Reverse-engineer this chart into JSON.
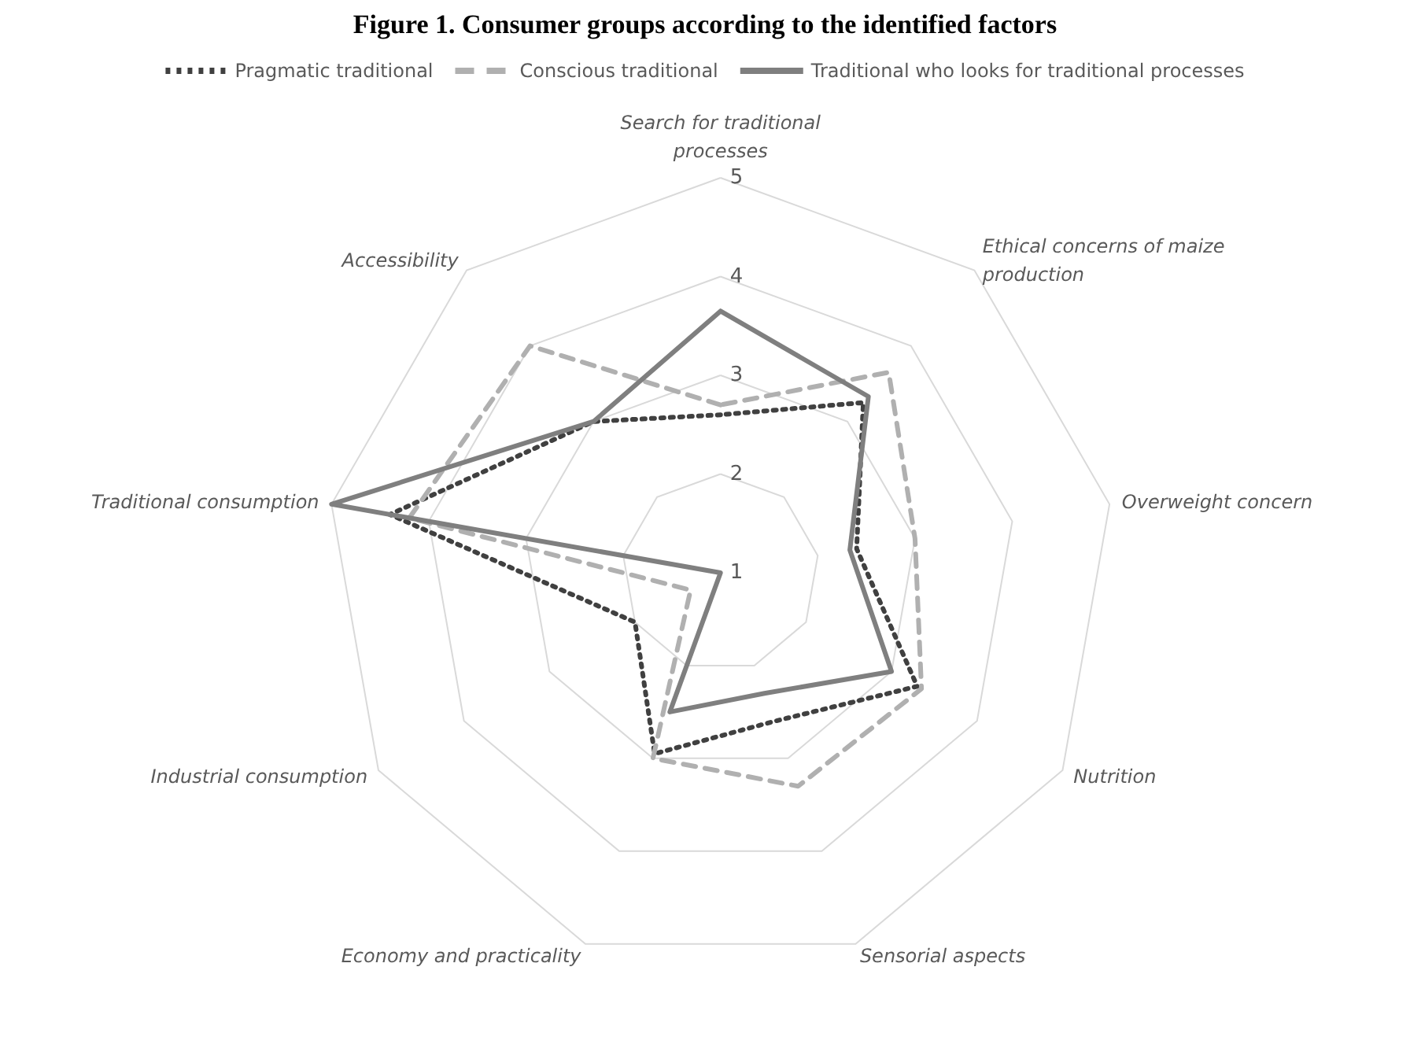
{
  "chart_data": {
    "type": "radar",
    "title": "Figure 1. Consumer groups according to the identified factors",
    "categories": [
      "Search for traditional\nprocesses",
      "Ethical concerns of maize\nproduction",
      "Overweight concern",
      "Nutrition",
      "Sensorial aspects",
      "Economy and practicality",
      "Industrial consumption",
      "Traditional consumption",
      "Accessibility"
    ],
    "series": [
      {
        "name": "Pragmatic traditional",
        "color": "#404040",
        "line_style": "dotted",
        "values": [
          2.6,
          3.25,
          2.4,
          3.3,
          2.6,
          2.95,
          2.0,
          4.4,
          3.0
        ]
      },
      {
        "name": "Conscious traditional",
        "color": "#b0b0b0",
        "line_style": "dashed",
        "values": [
          2.7,
          3.65,
          3.0,
          3.35,
          3.3,
          3.0,
          1.35,
          4.2,
          4.0
        ]
      },
      {
        "name": "Traditional who looks for traditional processes",
        "color": "#7f7f7f",
        "line_style": "solid",
        "values": [
          3.65,
          3.33,
          2.33,
          3.0,
          2.3,
          2.5,
          1.0,
          5.0,
          3.0
        ]
      }
    ],
    "ylim": [
      1,
      5
    ],
    "yticks": [
      1,
      2,
      3,
      4,
      5
    ],
    "grid": true,
    "legend": "top",
    "marker": "none"
  }
}
